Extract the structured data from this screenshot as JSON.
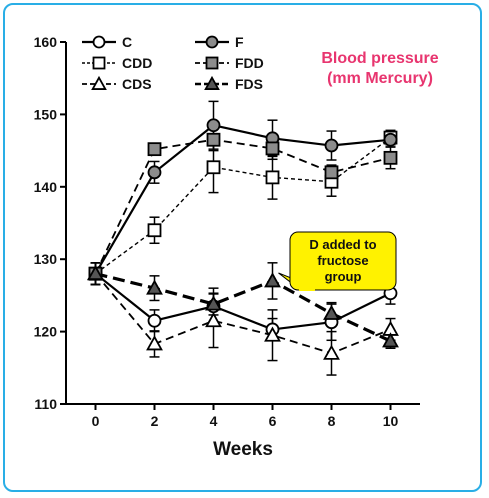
{
  "chart_data": {
    "type": "line",
    "title_lines": [
      "Blood pressure",
      "(mm Mercury)"
    ],
    "title_color": "#e8356f",
    "xlabel": "Weeks",
    "ylabel": "",
    "x": [
      0,
      2,
      4,
      6,
      8,
      10
    ],
    "xlim": [
      -1,
      11
    ],
    "ylim": [
      110,
      160
    ],
    "yticks": [
      110,
      120,
      130,
      140,
      150,
      160
    ],
    "grid": false,
    "legend_placement": "top-left",
    "series": [
      {
        "name": "C",
        "marker": "circle",
        "fill": "#ffffff",
        "dash": "solid",
        "values": [
          128,
          121.5,
          123.5,
          120.3,
          121.3,
          125.3
        ],
        "err": [
          1.5,
          1.5,
          2.5,
          1.5,
          2.5,
          1.5
        ]
      },
      {
        "name": "CDD",
        "marker": "square",
        "fill": "#ffffff",
        "dash": "dotted",
        "values": [
          128,
          134,
          142.7,
          141.3,
          140.7,
          146.8
        ],
        "err": [
          1.5,
          1.8,
          3.5,
          3.0,
          2.0,
          1.0
        ]
      },
      {
        "name": "CDS",
        "marker": "triangle",
        "fill": "#ffffff",
        "dash": "dashed",
        "values": [
          128,
          118.3,
          121.5,
          119.5,
          117,
          120.3
        ],
        "err": [
          1.5,
          1.8,
          3.7,
          3.5,
          3.0,
          1.5
        ]
      },
      {
        "name": "F",
        "marker": "circle",
        "fill": "#8c8c8c",
        "dash": "solid",
        "values": [
          128,
          142,
          148.5,
          146.7,
          145.7,
          146.5
        ],
        "err": [
          1.5,
          1.5,
          3.3,
          2.5,
          2.0,
          1.0
        ]
      },
      {
        "name": "FDD",
        "marker": "square",
        "fill": "#8c8c8c",
        "dash": "dashed",
        "values": [
          128,
          145.2,
          146.5,
          145.3,
          142,
          144
        ],
        "err": [
          1.5,
          0.5,
          1.5,
          1.5,
          1.0,
          1.5
        ]
      },
      {
        "name": "FDS",
        "marker": "triangle",
        "fill": "#555555",
        "dash": "bold",
        "values": [
          128,
          126,
          123.8,
          127,
          122.5,
          118.7
        ],
        "err": [
          1.5,
          1.7,
          1.5,
          2.5,
          1.5,
          1.0
        ]
      }
    ],
    "annotation": {
      "lines": [
        "D added to",
        "fructose",
        "group"
      ],
      "fill": "#fff200",
      "points_to": {
        "x": 6,
        "y": 127
      }
    }
  }
}
